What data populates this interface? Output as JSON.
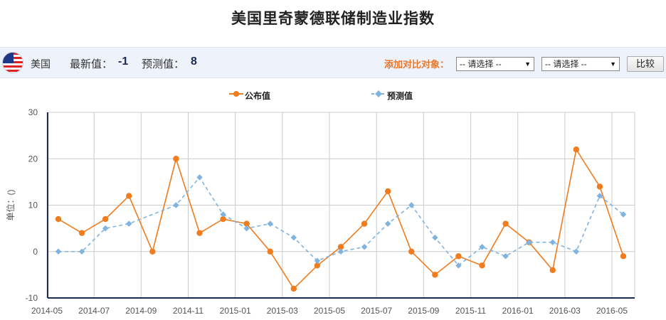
{
  "page": {
    "title": "美国里奇蒙德联储制造业指数"
  },
  "info": {
    "country": "美国",
    "latest_label": "最新值：",
    "latest_value": "-1",
    "forecast_label": "预测值：",
    "forecast_value": "8",
    "compare_label": "添加对比对象：",
    "select_1": "-- 请选择 --",
    "select_2": "-- 请选择 --",
    "compare_button": "比较"
  },
  "icons": {
    "flag": "us-flag-icon",
    "dropdown": "chevron-down-icon"
  },
  "colors": {
    "actual": "#f07c1e",
    "forecast": "#7fb3e0",
    "axis": "#1a2a55",
    "grid": "#cccccc"
  },
  "chart_data": {
    "type": "line",
    "ylabel": "单位：()",
    "ylim": [
      -10,
      30
    ],
    "yticks": [
      -10,
      0,
      10,
      20,
      30
    ],
    "xticks": [
      "2014-05",
      "2014-07",
      "2014-09",
      "2014-11",
      "2015-01",
      "2015-03",
      "2015-05",
      "2015-07",
      "2015-09",
      "2015-11",
      "2016-01",
      "2016-03",
      "2016-05"
    ],
    "grid": true,
    "legend": "top-center",
    "series": [
      {
        "name": "公布值",
        "points": [
          {
            "x": "2014-05",
            "y": 7
          },
          {
            "x": "2014-06",
            "y": 4
          },
          {
            "x": "2014-07",
            "y": 7
          },
          {
            "x": "2014-08",
            "y": 12
          },
          {
            "x": "2014-09",
            "y": 0
          },
          {
            "x": "2014-10",
            "y": 20
          },
          {
            "x": "2014-11",
            "y": 4
          },
          {
            "x": "2014-12",
            "y": 7
          },
          {
            "x": "2015-01",
            "y": 6
          },
          {
            "x": "2015-02",
            "y": 0
          },
          {
            "x": "2015-03",
            "y": -8
          },
          {
            "x": "2015-04",
            "y": -3
          },
          {
            "x": "2015-05",
            "y": 1
          },
          {
            "x": "2015-06",
            "y": 6
          },
          {
            "x": "2015-07",
            "y": 13
          },
          {
            "x": "2015-08",
            "y": 0
          },
          {
            "x": "2015-09",
            "y": -5
          },
          {
            "x": "2015-10",
            "y": -1
          },
          {
            "x": "2015-11",
            "y": -3
          },
          {
            "x": "2015-12",
            "y": 6
          },
          {
            "x": "2016-01",
            "y": 2
          },
          {
            "x": "2016-02",
            "y": -4
          },
          {
            "x": "2016-03",
            "y": 22
          },
          {
            "x": "2016-04",
            "y": 14
          },
          {
            "x": "2016-05",
            "y": -1
          }
        ]
      },
      {
        "name": "预测值",
        "points": [
          {
            "x": "2014-05",
            "y": 0
          },
          {
            "x": "2014-06",
            "y": 0
          },
          {
            "x": "2014-07",
            "y": 5
          },
          {
            "x": "2014-08",
            "y": 6
          },
          {
            "x": "2014-10",
            "y": 10
          },
          {
            "x": "2014-11",
            "y": 16
          },
          {
            "x": "2014-12",
            "y": 8
          },
          {
            "x": "2015-01",
            "y": 5
          },
          {
            "x": "2015-02",
            "y": 6
          },
          {
            "x": "2015-03",
            "y": 3
          },
          {
            "x": "2015-04",
            "y": -2
          },
          {
            "x": "2015-05",
            "y": 0
          },
          {
            "x": "2015-06",
            "y": 1
          },
          {
            "x": "2015-07",
            "y": 6
          },
          {
            "x": "2015-08",
            "y": 10
          },
          {
            "x": "2015-09",
            "y": 3
          },
          {
            "x": "2015-10",
            "y": -3
          },
          {
            "x": "2015-11",
            "y": 1
          },
          {
            "x": "2015-12",
            "y": -1
          },
          {
            "x": "2016-01",
            "y": 2
          },
          {
            "x": "2016-02",
            "y": 2
          },
          {
            "x": "2016-03",
            "y": 0
          },
          {
            "x": "2016-04",
            "y": 12
          },
          {
            "x": "2016-05",
            "y": 8
          }
        ]
      }
    ]
  }
}
